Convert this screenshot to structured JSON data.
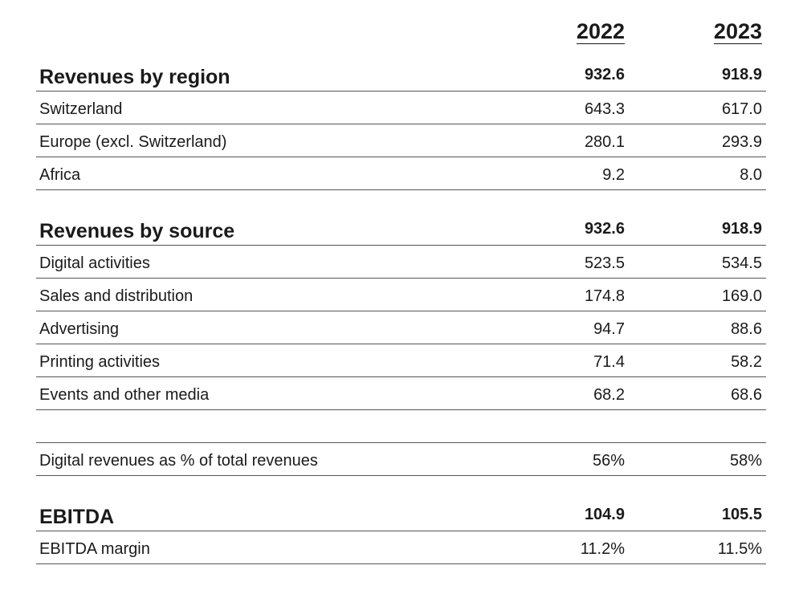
{
  "header": {
    "year_1": "2022",
    "year_2": "2023"
  },
  "rows": [
    {
      "label": "Revenues by region",
      "v1": "932.6",
      "v2": "918.9"
    },
    {
      "label": "Switzerland",
      "v1": "643.3",
      "v2": "617.0"
    },
    {
      "label": "Europe (excl. Switzerland)",
      "v1": "280.1",
      "v2": "293.9"
    },
    {
      "label": "Africa",
      "v1": "9.2",
      "v2": "8.0"
    },
    {
      "label": "Revenues by source",
      "v1": "932.6",
      "v2": "918.9"
    },
    {
      "label": "Digital activities",
      "v1": "523.5",
      "v2": "534.5"
    },
    {
      "label": "Sales and distribution",
      "v1": "174.8",
      "v2": "169.0"
    },
    {
      "label": "Advertising",
      "v1": "94.7",
      "v2": "88.6"
    },
    {
      "label": "Printing activities",
      "v1": "71.4",
      "v2": "58.2"
    },
    {
      "label": "Events and other media",
      "v1": "68.2",
      "v2": "68.6"
    },
    {
      "label": "",
      "v1": "",
      "v2": ""
    },
    {
      "label": "Digital revenues as % of total revenues",
      "v1": "56%",
      "v2": "58%"
    },
    {
      "label": "EBITDA",
      "v1": "104.9",
      "v2": "105.5"
    },
    {
      "label": "EBITDA margin",
      "v1": "11.2%",
      "v2": "11.5%"
    }
  ]
}
